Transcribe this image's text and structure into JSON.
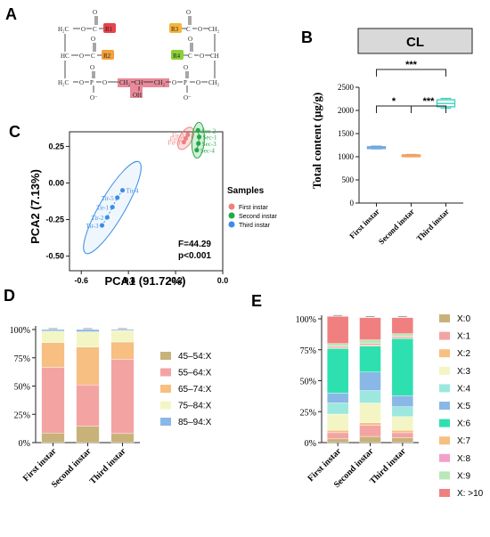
{
  "panels": {
    "A": "A",
    "B": "B",
    "C": "C",
    "D": "D",
    "E": "E"
  },
  "structure": {
    "labels": {
      "h2c": "H₂C",
      "hc": "HC",
      "h2c2": "H₂C",
      "ch2": "CH₂",
      "ch": "CH",
      "ch2b": "CH₂",
      "o": "O",
      "p": "P",
      "oh": "OH",
      "ominus": "O⁻",
      "c": "C",
      "r1": "R1",
      "r2": "R2",
      "r3": "R3",
      "r4": "R4"
    },
    "colors": {
      "R1": "#e8424b",
      "R2": "#f2a13a",
      "R3": "#f6b43a",
      "R4": "#8cd035",
      "backbone": "#e88a9a"
    }
  },
  "chart_data": [
    {
      "panel": "B",
      "type": "box",
      "title": "CL",
      "ylabel": "Total content (μg/g)",
      "ylim": [
        0,
        2500
      ],
      "yticks": [
        0,
        500,
        1000,
        1500,
        2000,
        2500
      ],
      "categories": [
        "First instar",
        "Second instar",
        "Third instar"
      ],
      "boxes": [
        {
          "min": 1170,
          "q1": 1185,
          "median": 1200,
          "q3": 1215,
          "max": 1230,
          "color": "#6fa8dc"
        },
        {
          "min": 1000,
          "q1": 1010,
          "median": 1025,
          "q3": 1040,
          "max": 1050,
          "color": "#f0a060"
        },
        {
          "min": 2050,
          "q1": 2080,
          "median": 2150,
          "q3": 2230,
          "max": 2260,
          "color": "#40d0c0"
        }
      ],
      "significance": [
        {
          "pair": [
            1,
            2
          ],
          "label": "*"
        },
        {
          "pair": [
            2,
            3
          ],
          "label": "***"
        },
        {
          "pair": [
            1,
            3
          ],
          "label": "***"
        }
      ]
    },
    {
      "panel": "C",
      "type": "scatter",
      "xlabel": "PCA1 (91.72%)",
      "ylabel": "PCA2 (7.13%)",
      "xlim": [
        -0.65,
        0
      ],
      "ylim": [
        -0.6,
        0.35
      ],
      "xticks": [
        -0.6,
        -0.4,
        -0.2,
        0.0
      ],
      "xticklabels": [
        "-0.6",
        "-0.4",
        "-0.2",
        "0.0"
      ],
      "yticks": [
        -0.5,
        -0.25,
        0.0,
        0.25
      ],
      "yticklabels": [
        "-0.50",
        "-0.25",
        "0.00",
        "0.25"
      ],
      "legend_title": "Samples",
      "annotation": [
        "F=44.29",
        "p<0.001"
      ],
      "series": [
        {
          "name": "First instar",
          "color": "#f08080",
          "points": [
            {
              "x": -0.148,
              "y": 0.33,
              "label": "Fir-1"
            },
            {
              "x": -0.157,
              "y": 0.305,
              "label": "Fir-2"
            },
            {
              "x": -0.165,
              "y": 0.28,
              "label": "Fir-3"
            }
          ]
        },
        {
          "name": "Second instar",
          "color": "#22aa44",
          "points": [
            {
              "x": -0.105,
              "y": 0.36,
              "label": "Sec-2"
            },
            {
              "x": -0.1,
              "y": 0.315,
              "label": "Sec-1"
            },
            {
              "x": -0.103,
              "y": 0.27,
              "label": "Sec-3"
            },
            {
              "x": -0.11,
              "y": 0.225,
              "label": "Sec-4"
            }
          ]
        },
        {
          "name": "Third instar",
          "color": "#3a8ee6",
          "points": [
            {
              "x": -0.425,
              "y": -0.05,
              "label": "Tir-4"
            },
            {
              "x": -0.447,
              "y": -0.1,
              "label": "Tir-5"
            },
            {
              "x": -0.468,
              "y": -0.165,
              "label": "Tir-1"
            },
            {
              "x": -0.49,
              "y": -0.235,
              "label": "Tir-2"
            },
            {
              "x": -0.512,
              "y": -0.29,
              "label": "Tir-3"
            }
          ]
        }
      ]
    },
    {
      "panel": "D",
      "type": "stacked-bar",
      "yticklabels": [
        "0%",
        "25%",
        "50%",
        "75%",
        "100%"
      ],
      "categories": [
        "First instar",
        "Second instar",
        "Third instar"
      ],
      "series": [
        {
          "name": "45–54:X",
          "color": "#c8b27a",
          "values": [
            8.5,
            14.5,
            8
          ]
        },
        {
          "name": "55–64:X",
          "color": "#f4a3a3",
          "values": [
            58,
            36.5,
            65.5
          ]
        },
        {
          "name": "65–74:X",
          "color": "#f7bf82",
          "values": [
            22,
            33.5,
            15.5
          ]
        },
        {
          "name": "75–84:X",
          "color": "#f3f6c4",
          "values": [
            10,
            13.5,
            10
          ]
        },
        {
          "name": "85–94:X",
          "color": "#8ab8e6",
          "values": [
            1.5,
            2,
            1
          ]
        }
      ]
    },
    {
      "panel": "E",
      "type": "stacked-bar",
      "yticklabels": [
        "0%",
        "25%",
        "50%",
        "75%",
        "100%"
      ],
      "categories": [
        "First instar",
        "Second instar",
        "Third instar"
      ],
      "series": [
        {
          "name": "X:0",
          "color": "#c8b27a",
          "values": [
            3,
            5,
            4
          ]
        },
        {
          "name": "X:1",
          "color": "#f4a3a3",
          "values": [
            5,
            9,
            4
          ]
        },
        {
          "name": "X:2",
          "color": "#f7bf82",
          "values": [
            2,
            2,
            2
          ]
        },
        {
          "name": "X:3",
          "color": "#f3f6c4",
          "values": [
            13,
            16,
            11
          ]
        },
        {
          "name": "X:4",
          "color": "#9de8de",
          "values": [
            9,
            10,
            8
          ]
        },
        {
          "name": "X:5",
          "color": "#8ab8e6",
          "values": [
            8,
            15,
            9
          ]
        },
        {
          "name": "X:6",
          "color": "#2ee0b0",
          "values": [
            36,
            21,
            46
          ]
        },
        {
          "name": "X:7",
          "color": "#f7bf82",
          "values": [
            1,
            1,
            1
          ]
        },
        {
          "name": "X:8",
          "color": "#f3a0c8",
          "values": [
            1,
            1,
            1
          ]
        },
        {
          "name": "X:9",
          "color": "#b8e8b8",
          "values": [
            2,
            3,
            2
          ]
        },
        {
          "name": "X: >10",
          "color": "#f08080",
          "values": [
            22,
            18,
            13
          ]
        }
      ]
    }
  ]
}
